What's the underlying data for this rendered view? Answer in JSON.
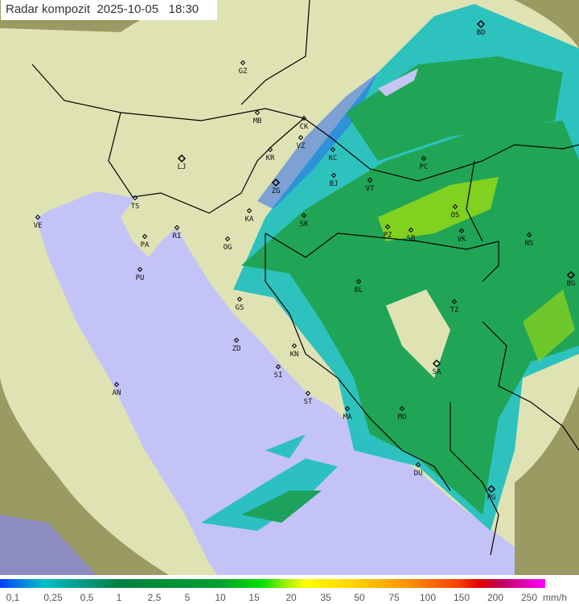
{
  "title": "Radar kompozit  2025-10-05   18:30",
  "legend": {
    "labels": [
      "0,1",
      "0,25",
      "0,5",
      "1",
      "2,5",
      "5",
      "10",
      "15",
      "20",
      "35",
      "50",
      "75",
      "100",
      "150",
      "200",
      "250"
    ],
    "unit": "mm/h"
  },
  "cities": [
    "GZ",
    "MB",
    "CK",
    "VZ",
    "KR",
    "KC",
    "LJ",
    "ZG",
    "TS",
    "VE",
    "RI",
    "PA",
    "PU",
    "KA",
    "SK",
    "BJ",
    "VT",
    "PC",
    "OS",
    "VK",
    "PZ",
    "SB",
    "NS",
    "BG",
    "OG",
    "BL",
    "GS",
    "ZD",
    "KN",
    "SI",
    "TZ",
    "SA",
    "ST",
    "MA",
    "MO",
    "DU",
    "PG",
    "AN",
    "BD"
  ],
  "colors": {
    "land": "#dfe3b4",
    "sea": "#c3c3f7",
    "outside_land": "#9a9a62",
    "outside_sea": "#8c8cc0",
    "rain_light": "#1e60f0",
    "rain_mid": "#20c0c0",
    "rain_heavy": "#10a050",
    "rain_peak": "#9ee000"
  }
}
